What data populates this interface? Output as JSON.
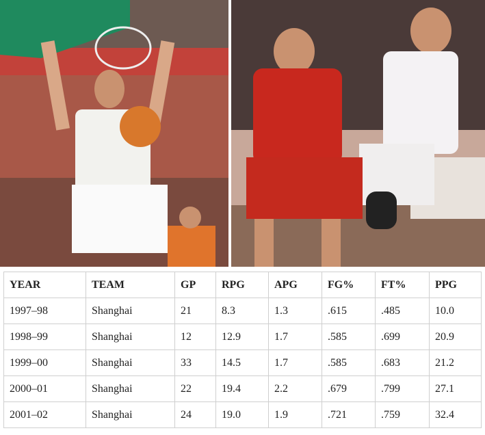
{
  "table": {
    "header": [
      "YEAR",
      "TEAM",
      "GP",
      "RPG",
      "APG",
      "FG%",
      "FT%",
      "PPG"
    ],
    "rows": [
      [
        "1997–98",
        "Shanghai",
        "21",
        "8.3",
        "1.3",
        ".615",
        ".485",
        "10.0"
      ],
      [
        "1998–99",
        "Shanghai",
        "12",
        "12.9",
        "1.7",
        ".585",
        ".699",
        "20.9"
      ],
      [
        "1999–00",
        "Shanghai",
        "33",
        "14.5",
        "1.7",
        ".585",
        ".683",
        "21.2"
      ],
      [
        "2000–01",
        "Shanghai",
        "22",
        "19.4",
        "2.2",
        ".679",
        ".799",
        "27.1"
      ],
      [
        "2001–02",
        "Shanghai",
        "24",
        "19.0",
        "1.9",
        ".721",
        ".759",
        "32.4"
      ]
    ]
  }
}
